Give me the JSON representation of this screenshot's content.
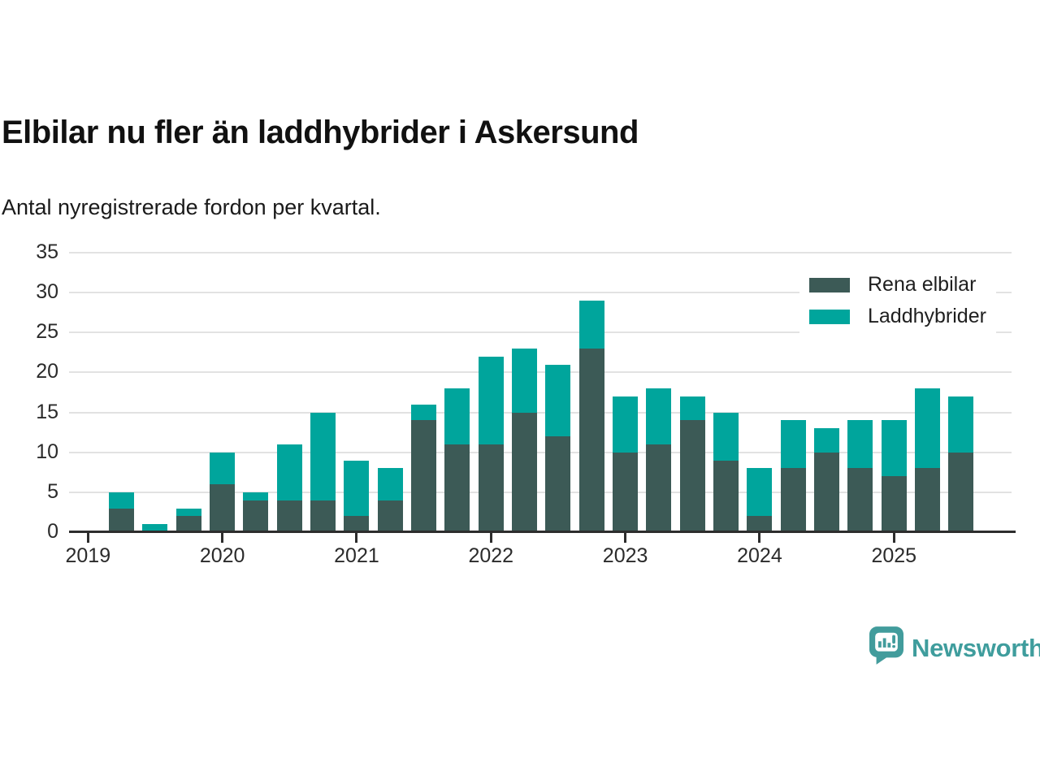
{
  "chart_data": {
    "type": "bar",
    "stacked": true,
    "title": "Elbilar nu fler än laddhybrider i Askersund",
    "subtitle": "Antal nyregistrerade fordon per kvartal.",
    "x": [
      "2019 K2",
      "2019 K3",
      "2019 K4",
      "2020 K1",
      "2020 K2",
      "2020 K3",
      "2020 K4",
      "2021 K1",
      "2021 K2",
      "2021 K3",
      "2021 K4",
      "2022 K1",
      "2022 K2",
      "2022 K3",
      "2022 K4",
      "2023 K1",
      "2023 K2",
      "2023 K3",
      "2023 K4",
      "2024 K1",
      "2024 K2",
      "2024 K3",
      "2024 K4",
      "2025 K1",
      "2025 K2",
      "2025 K3"
    ],
    "series": [
      {
        "name": "Rena elbilar",
        "color": "#3c5a56",
        "values": [
          3,
          0,
          2,
          6,
          4,
          4,
          4,
          2,
          4,
          14,
          11,
          11,
          15,
          12,
          23,
          10,
          11,
          14,
          9,
          2,
          8,
          10,
          8,
          7,
          8,
          10
        ]
      },
      {
        "name": "Laddhybrider",
        "color": "#00a59c",
        "values": [
          2,
          1,
          1,
          4,
          1,
          7,
          11,
          7,
          4,
          2,
          7,
          11,
          8,
          9,
          6,
          7,
          7,
          3,
          6,
          6,
          6,
          3,
          6,
          7,
          10,
          7
        ]
      }
    ],
    "totals": [
      5,
      1,
      3,
      10,
      5,
      11,
      15,
      9,
      8,
      16,
      18,
      22,
      23,
      21,
      29,
      17,
      18,
      17,
      15,
      8,
      14,
      13,
      14,
      14,
      18,
      17
    ],
    "year_ticks": [
      "2019",
      "2020",
      "2021",
      "2022",
      "2023",
      "2024",
      "2025"
    ],
    "y_ticks": [
      0,
      5,
      10,
      15,
      20,
      25,
      30,
      35
    ],
    "ylim": [
      0,
      35
    ],
    "grid": "horizontal",
    "legend_position": "top-right"
  },
  "branding": {
    "logo_text": "Newsworthy",
    "logo_color": "#3f9d9d"
  }
}
